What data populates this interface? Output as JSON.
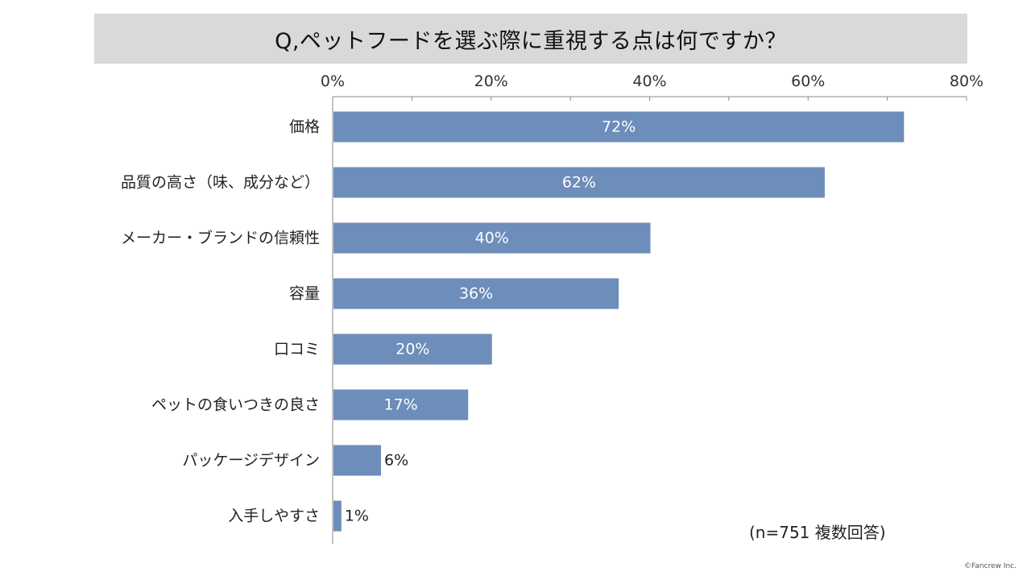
{
  "title": "Q,ペットフードを選ぶ際に重視する点は何ですか？",
  "note": "(n=751 複数回答)",
  "copyright": "©Fancrew Inc.",
  "colors": {
    "bar": "#6d8dba",
    "title_bg": "#d9d9dc",
    "label_inside": "#ffffff",
    "label_outside": "#222222"
  },
  "chart_data": {
    "type": "bar",
    "orientation": "horizontal",
    "categories": [
      "価格",
      "品質の高さ（味、成分など）",
      "メーカー・ブランドの信頼性",
      "容量",
      "口コミ",
      "ペットの食いつきの良さ",
      "パッケージデザイン",
      "入手しやすさ"
    ],
    "values": [
      72,
      62,
      40,
      36,
      20,
      17,
      6,
      1
    ],
    "value_labels": [
      "72%",
      "62%",
      "40%",
      "36%",
      "20%",
      "17%",
      "6%",
      "1%"
    ],
    "xlim": [
      0,
      80
    ],
    "xticks": [
      0,
      20,
      40,
      60,
      80
    ],
    "xtick_labels": [
      "0%",
      "20%",
      "40%",
      "60%",
      "80%"
    ],
    "x_axis_position": "top",
    "grid": false
  }
}
